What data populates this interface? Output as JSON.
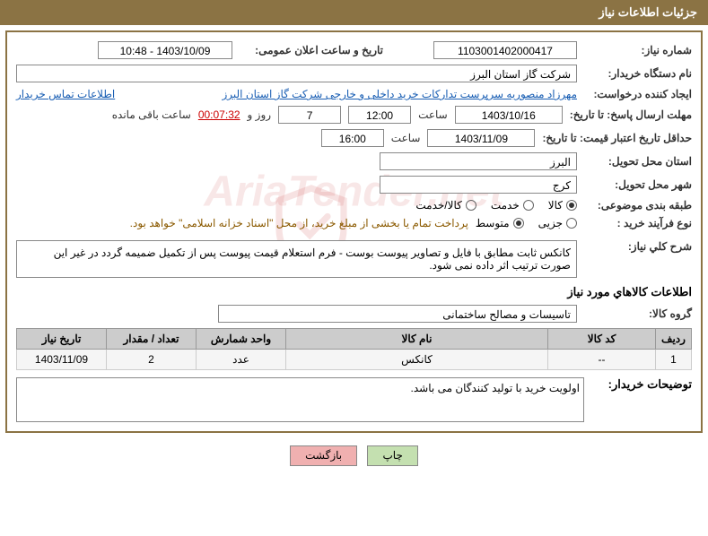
{
  "header": {
    "title": "جزئیات اطلاعات نیاز"
  },
  "fields": {
    "need_number_label": "شماره نیاز:",
    "need_number": "1103001402000417",
    "announce_datetime_label": "تاریخ و ساعت اعلان عمومی:",
    "announce_datetime": "1403/10/09 - 10:48",
    "buyer_org_label": "نام دستگاه خریدار:",
    "buyer_org": "شرکت گاز استان البرز",
    "requester_label": "ایجاد کننده درخواست:",
    "requester": "مهرزاد منصوریه سرپرست تدارکات خرید داخلی و خارجی شرکت گاز استان البرز",
    "contact_link": "اطلاعات تماس خریدار",
    "deadline_label": "مهلت ارسال پاسخ: تا تاریخ:",
    "deadline_date": "1403/10/16",
    "time_label": "ساعت",
    "deadline_time": "12:00",
    "days_count": "7",
    "days_and": "روز و",
    "timer": "00:07:32",
    "remaining_label": "ساعت باقی مانده",
    "validity_label": "حداقل تاریخ اعتبار قیمت: تا تاریخ:",
    "validity_date": "1403/11/09",
    "validity_time": "16:00",
    "delivery_province_label": "استان محل تحویل:",
    "delivery_province": "البرز",
    "delivery_city_label": "شهر محل تحویل:",
    "delivery_city": "کرج",
    "category_label": "طبقه بندی موضوعی:",
    "purchase_type_label": "نوع فرآیند خرید :",
    "purchase_note": "پرداخت تمام یا بخشی از مبلغ خرید، از محل \"اسناد خزانه اسلامی\" خواهد بود.",
    "need_desc_label": "شرح کلي نياز:",
    "need_desc": "کانکس ثابت مطابق با فایل و تصاویر پیوست بوست - فرم استعلام قیمت پیوست پس از تکمیل ضمیمه گردد در غیر این صورت ترتیب اثر داده نمی شود.",
    "items_section_title": "اطلاعات کالاهاي مورد نياز",
    "goods_group_label": "گروه کالا:",
    "goods_group": "تاسیسات و مصالح ساختمانی",
    "buyer_notes_label": "توضيحات خريدار:",
    "buyer_notes": "اولویت خرید با تولید کنندگان می باشد."
  },
  "radios": {
    "category": {
      "options": [
        {
          "label": "کالا",
          "checked": true
        },
        {
          "label": "خدمت",
          "checked": false
        },
        {
          "label": "کالا/خدمت",
          "checked": false
        }
      ]
    },
    "purchase": {
      "options": [
        {
          "label": "جزیی",
          "checked": false
        },
        {
          "label": "متوسط",
          "checked": true
        }
      ]
    }
  },
  "table": {
    "columns": [
      "ردیف",
      "کد کالا",
      "نام کالا",
      "واحد شمارش",
      "تعداد / مقدار",
      "تاریخ نیاز"
    ],
    "rows": [
      [
        "1",
        "--",
        "کانکس",
        "عدد",
        "2",
        "1403/11/09"
      ]
    ],
    "col_widths": [
      "40px",
      "120px",
      "auto",
      "100px",
      "100px",
      "100px"
    ]
  },
  "buttons": {
    "print": "چاپ",
    "back": "بازگشت"
  },
  "watermark": "AriaTender.net"
}
